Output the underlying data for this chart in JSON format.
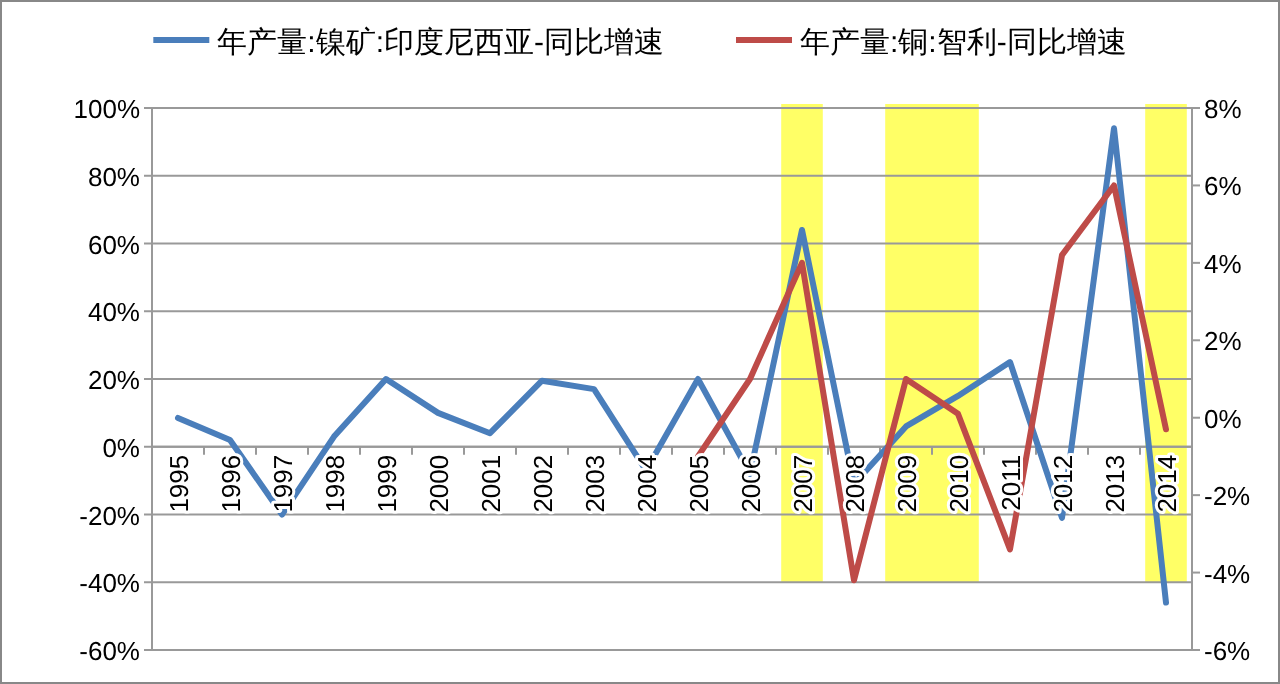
{
  "chart_data": {
    "type": "line",
    "categories": [
      "1995",
      "1996",
      "1997",
      "1998",
      "1999",
      "2000",
      "2001",
      "2002",
      "2003",
      "2004",
      "2005",
      "2006",
      "2007",
      "2008",
      "2009",
      "2010",
      "2011",
      "2012",
      "2013",
      "2014"
    ],
    "series": [
      {
        "name": "年产量:镍矿:印度尼西亚-同比增速",
        "color": "#4a7ebb",
        "values": [
          8.5,
          2,
          -20,
          3,
          20,
          10,
          4,
          19.5,
          17,
          -7,
          20,
          -8,
          64,
          -11,
          6,
          15,
          25,
          -21,
          94,
          -46
        ]
      },
      {
        "name": "年产量:铜:智利-同比增速",
        "color": "#be4b48",
        "axis": "y2",
        "values": [
          null,
          null,
          null,
          null,
          null,
          null,
          null,
          null,
          null,
          null,
          -1,
          1,
          4,
          -4.2,
          1,
          0.1,
          -3.4,
          4.2,
          6,
          -0.3
        ]
      }
    ],
    "ylim": [
      -60,
      100
    ],
    "yticks": [
      {
        "value": -60,
        "label": "-60%"
      },
      {
        "value": -40,
        "label": "-40%"
      },
      {
        "value": -20,
        "label": "-20%"
      },
      {
        "value": 0,
        "label": "0%"
      },
      {
        "value": 20,
        "label": "20%"
      },
      {
        "value": 40,
        "label": "40%"
      },
      {
        "value": 60,
        "label": "60%"
      },
      {
        "value": 80,
        "label": "80%"
      },
      {
        "value": 100,
        "label": "100%"
      }
    ],
    "y2lim": [
      -6,
      8
    ],
    "y2ticks": [
      {
        "value": -6,
        "label": "-6%"
      },
      {
        "value": -4,
        "label": "-4%"
      },
      {
        "value": -2,
        "label": "-2%"
      },
      {
        "value": 0,
        "label": "0%"
      },
      {
        "value": 2,
        "label": "2%"
      },
      {
        "value": 4,
        "label": "4%"
      },
      {
        "value": 6,
        "label": "6%"
      },
      {
        "value": 8,
        "label": "8%"
      }
    ],
    "bands": [
      {
        "axis": "x",
        "from": "2007",
        "to": "2007",
        "color": "#ffff66"
      },
      {
        "axis": "x",
        "from": "2009",
        "to": "2010",
        "color": "#ffff66"
      },
      {
        "axis": "x",
        "from": "2014",
        "to": "2014",
        "color": "#ffff66"
      }
    ],
    "grid": "y",
    "legend": "top",
    "marker": "none",
    "line_style": "solid"
  }
}
